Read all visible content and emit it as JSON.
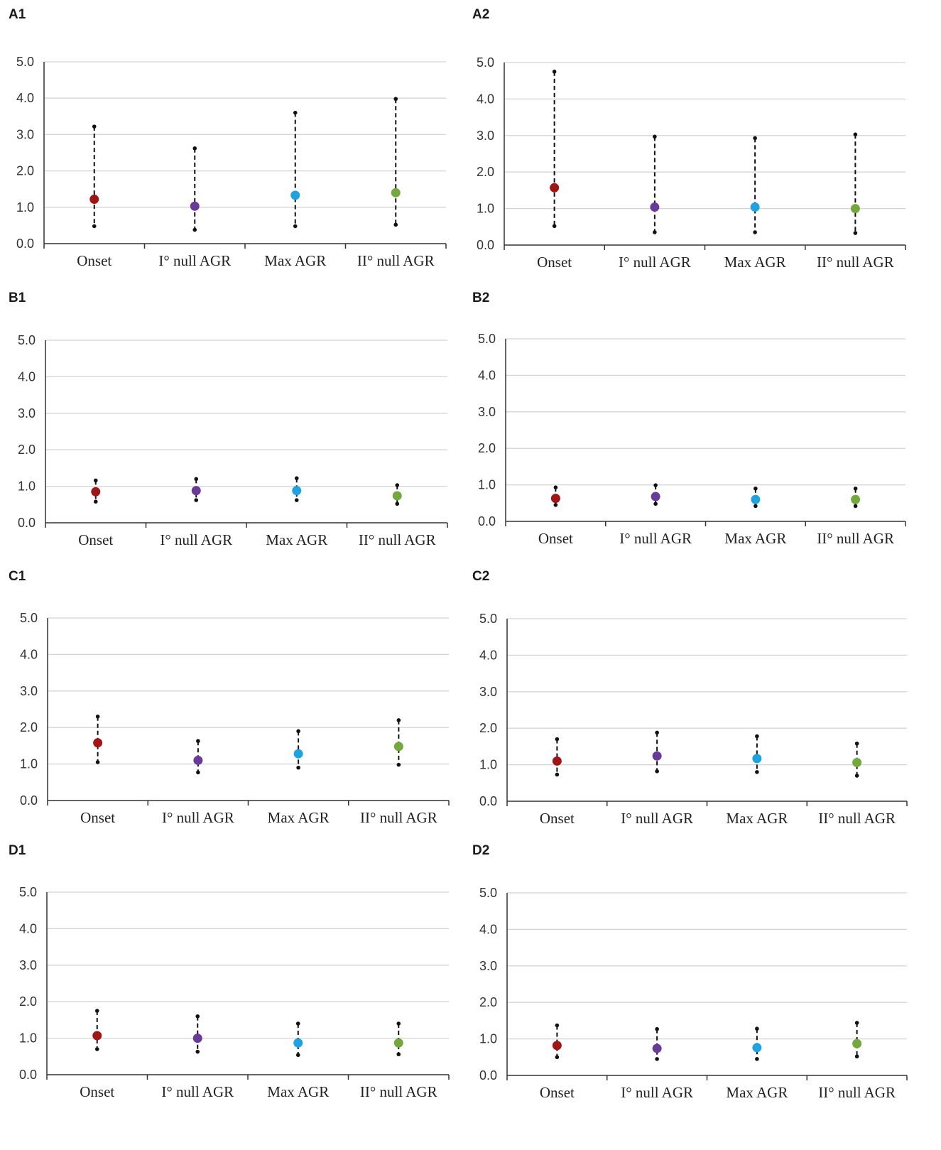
{
  "chart_data": [
    {
      "id": "A1",
      "type": "scatter",
      "subtype": "point-with-interval",
      "categories": [
        "Onset",
        "I° null AGR",
        "Max AGR",
        "II° null AGR"
      ],
      "point": [
        1.22,
        1.03,
        1.33,
        1.4
      ],
      "lower": [
        0.48,
        0.38,
        0.48,
        0.52
      ],
      "upper": [
        3.22,
        2.62,
        3.6,
        3.98
      ],
      "ylim": [
        0,
        5
      ],
      "yticks": [
        "0.0",
        "1.0",
        "2.0",
        "3.0",
        "4.0",
        "5.0"
      ],
      "grid": true
    },
    {
      "id": "A2",
      "type": "scatter",
      "subtype": "point-with-interval",
      "categories": [
        "Onset",
        "I° null AGR",
        "Max AGR",
        "II° null AGR"
      ],
      "point": [
        1.57,
        1.04,
        1.04,
        1.0
      ],
      "lower": [
        0.52,
        0.35,
        0.35,
        0.33
      ],
      "upper": [
        4.75,
        2.97,
        2.93,
        3.03
      ],
      "ylim": [
        0,
        5
      ],
      "yticks": [
        "0.0",
        "1.0",
        "2.0",
        "3.0",
        "4.0",
        "5.0"
      ],
      "grid": true
    },
    {
      "id": "B1",
      "type": "scatter",
      "subtype": "point-with-interval",
      "categories": [
        "Onset",
        "I° null AGR",
        "Max AGR",
        "II° null AGR"
      ],
      "point": [
        0.85,
        0.88,
        0.88,
        0.74
      ],
      "lower": [
        0.58,
        0.62,
        0.62,
        0.52
      ],
      "upper": [
        1.16,
        1.2,
        1.22,
        1.03
      ],
      "ylim": [
        0,
        5
      ],
      "yticks": [
        "0.0",
        "1.0",
        "2.0",
        "3.0",
        "4.0",
        "5.0"
      ],
      "grid": true
    },
    {
      "id": "B2",
      "type": "scatter",
      "subtype": "point-with-interval",
      "categories": [
        "Onset",
        "I° null AGR",
        "Max AGR",
        "II° null AGR"
      ],
      "point": [
        0.63,
        0.68,
        0.6,
        0.6
      ],
      "lower": [
        0.45,
        0.48,
        0.42,
        0.42
      ],
      "upper": [
        0.93,
        0.99,
        0.9,
        0.9
      ],
      "ylim": [
        0,
        5
      ],
      "yticks": [
        "0.0",
        "1.0",
        "2.0",
        "3.0",
        "4.0",
        "5.0"
      ],
      "grid": true
    },
    {
      "id": "C1",
      "type": "scatter",
      "subtype": "point-with-interval",
      "categories": [
        "Onset",
        "I° null AGR",
        "Max AGR",
        "II° null AGR"
      ],
      "point": [
        1.58,
        1.1,
        1.28,
        1.48
      ],
      "lower": [
        1.05,
        0.77,
        0.9,
        0.98
      ],
      "upper": [
        2.3,
        1.63,
        1.9,
        2.2
      ],
      "ylim": [
        0,
        5
      ],
      "yticks": [
        "0.0",
        "1.0",
        "2.0",
        "3.0",
        "4.0",
        "5.0"
      ],
      "grid": true
    },
    {
      "id": "C2",
      "type": "scatter",
      "subtype": "point-with-interval",
      "categories": [
        "Onset",
        "I° null AGR",
        "Max AGR",
        "II° null AGR"
      ],
      "point": [
        1.1,
        1.24,
        1.17,
        1.06
      ],
      "lower": [
        0.73,
        0.82,
        0.8,
        0.7
      ],
      "upper": [
        1.7,
        1.88,
        1.78,
        1.58
      ],
      "ylim": [
        0,
        5
      ],
      "yticks": [
        "0.0",
        "1.0",
        "2.0",
        "3.0",
        "4.0",
        "5.0"
      ],
      "grid": true
    },
    {
      "id": "D1",
      "type": "scatter",
      "subtype": "point-with-interval",
      "categories": [
        "Onset",
        "I° null AGR",
        "Max AGR",
        "II° null AGR"
      ],
      "point": [
        1.07,
        1.0,
        0.87,
        0.87
      ],
      "lower": [
        0.7,
        0.63,
        0.54,
        0.56
      ],
      "upper": [
        1.75,
        1.6,
        1.4,
        1.4
      ],
      "ylim": [
        0,
        5
      ],
      "yticks": [
        "0.0",
        "1.0",
        "2.0",
        "3.0",
        "4.0",
        "5.0"
      ],
      "grid": true
    },
    {
      "id": "D2",
      "type": "scatter",
      "subtype": "point-with-interval",
      "categories": [
        "Onset",
        "I° null AGR",
        "Max AGR",
        "II° null AGR"
      ],
      "point": [
        0.82,
        0.74,
        0.76,
        0.87
      ],
      "lower": [
        0.5,
        0.45,
        0.45,
        0.52
      ],
      "upper": [
        1.37,
        1.27,
        1.28,
        1.44
      ],
      "ylim": [
        0,
        5
      ],
      "yticks": [
        "0.0",
        "1.0",
        "2.0",
        "3.0",
        "4.0",
        "5.0"
      ],
      "grid": true
    }
  ],
  "series_colors": [
    "#a01515",
    "#6a3a99",
    "#1fa3e0",
    "#72a83c"
  ],
  "whisker_color": "#111111",
  "grid_color": "#d4d4d4",
  "axis_color": "#333333"
}
